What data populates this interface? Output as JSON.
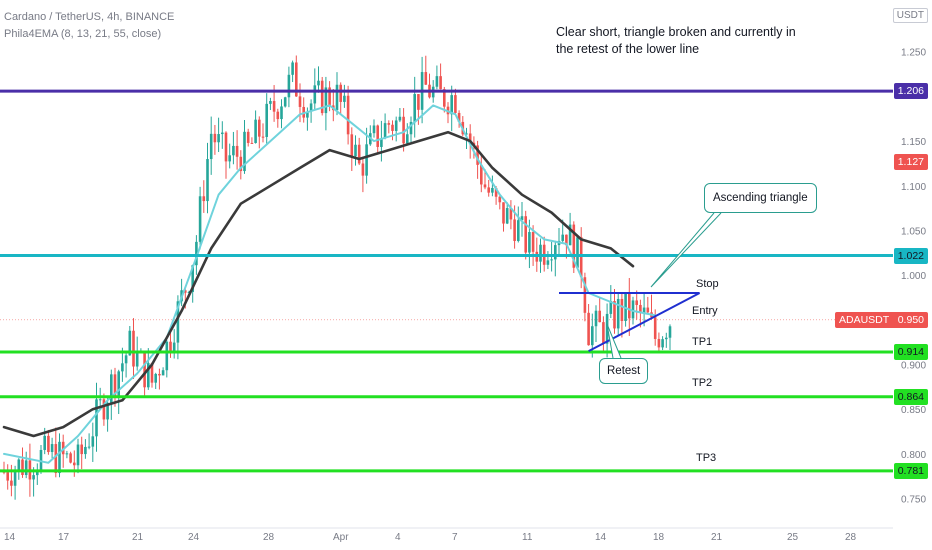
{
  "header": {
    "symbol_line": "Cardano / TetherUS, 4h, BINANCE",
    "indicator_line": "Phila4EMA (8, 13, 21, 55, close)"
  },
  "note": {
    "line1": "Clear short, triangle broken and currently in",
    "line2": "the retest of the lower line"
  },
  "labels": {
    "stop": "Stop",
    "entry": "Entry",
    "tp1": "TP1",
    "tp2": "TP2",
    "tp3": "TP3",
    "ascending_triangle": "Ascending triangle",
    "retest": "Retest"
  },
  "axis": {
    "currency_top": "USDT",
    "currency_bottom": ""
  },
  "colors": {
    "purple_level": "#4a2fa8",
    "cyan_level": "#18b6c4",
    "green_level": "#22e022",
    "triangle": "#1f2fd0",
    "ema_fast": "#6fd3dc",
    "ema_slow": "#3a3a3a",
    "candle_up": "#26a69a",
    "candle_down": "#ef5350",
    "callout": "#2a9d8f"
  },
  "chart_data": {
    "type": "candlestick",
    "ylim": [
      0.735,
      1.29
    ],
    "y_ticks": [
      1.25,
      1.15,
      1.1,
      1.05,
      1.0,
      0.9,
      0.85,
      0.8,
      0.75
    ],
    "x_ticks": [
      "14",
      "17",
      "21",
      "24",
      "28",
      "Apr",
      "4",
      "7",
      "11",
      "14",
      "18",
      "21",
      "25",
      "28"
    ],
    "horizontal_levels": [
      {
        "value": 1.206,
        "color": "#4a2fa8"
      },
      {
        "value": 1.022,
        "color": "#18b6c4"
      },
      {
        "value": 0.914,
        "color": "#22e022"
      },
      {
        "value": 0.864,
        "color": "#22e022"
      },
      {
        "value": 0.781,
        "color": "#22e022"
      }
    ],
    "price_badges": [
      {
        "value": 1.206,
        "text": "1.206",
        "bg": "#4a2fa8",
        "fg": "#ffffff"
      },
      {
        "value": 1.127,
        "text": "1.127",
        "bg": "#ef5350",
        "fg": "#ffffff"
      },
      {
        "value": 1.022,
        "text": "1.022",
        "bg": "#18b6c4",
        "fg": "#131722"
      },
      {
        "value": 0.95,
        "text": "ADAUSDT   0.950",
        "bg": "#ef5350",
        "fg": "#ffffff"
      },
      {
        "value": 0.914,
        "text": "0.914",
        "bg": "#22e022",
        "fg": "#131722"
      },
      {
        "value": 0.864,
        "text": "0.864",
        "bg": "#22e022",
        "fg": "#131722"
      },
      {
        "value": 0.781,
        "text": "0.781",
        "bg": "#22e022",
        "fg": "#131722"
      }
    ],
    "current_price": 0.95,
    "close_path": [
      [
        0,
        0.78
      ],
      [
        6,
        0.8
      ],
      [
        10,
        0.79
      ],
      [
        14,
        0.87
      ],
      [
        17,
        0.92
      ],
      [
        20,
        0.88
      ],
      [
        22,
        0.92
      ],
      [
        25,
        1.0
      ],
      [
        26,
        1.04
      ],
      [
        28,
        1.16
      ],
      [
        30,
        1.13
      ],
      [
        33,
        1.14
      ],
      [
        36,
        1.18
      ],
      [
        39,
        1.22
      ],
      [
        41,
        1.19
      ],
      [
        43,
        1.2
      ],
      [
        45,
        1.2
      ],
      [
        46,
        1.18
      ],
      [
        48,
        1.12
      ],
      [
        50,
        1.15
      ],
      [
        52,
        1.17
      ],
      [
        54,
        1.17
      ],
      [
        55,
        1.19
      ],
      [
        57,
        1.21
      ],
      [
        59,
        1.2
      ],
      [
        61,
        1.2
      ],
      [
        63,
        1.15
      ],
      [
        65,
        1.1
      ],
      [
        67,
        1.07
      ],
      [
        69,
        1.06
      ],
      [
        71,
        1.03
      ],
      [
        73,
        1.03
      ],
      [
        75,
        1.05
      ],
      [
        76,
        1.05
      ],
      [
        78,
        1.01
      ],
      [
        79,
        0.94
      ],
      [
        81,
        0.94
      ],
      [
        83,
        0.96
      ],
      [
        85,
        0.96
      ],
      [
        87,
        0.95
      ],
      [
        88,
        0.93
      ],
      [
        90,
        0.95
      ]
    ],
    "ema_fast": [
      [
        0,
        0.8
      ],
      [
        6,
        0.79
      ],
      [
        10,
        0.82
      ],
      [
        14,
        0.86
      ],
      [
        18,
        0.89
      ],
      [
        22,
        0.93
      ],
      [
        26,
        1.02
      ],
      [
        29,
        1.09
      ],
      [
        32,
        1.12
      ],
      [
        36,
        1.15
      ],
      [
        40,
        1.18
      ],
      [
        44,
        1.19
      ],
      [
        47,
        1.17
      ],
      [
        50,
        1.15
      ],
      [
        54,
        1.16
      ],
      [
        58,
        1.19
      ],
      [
        61,
        1.18
      ],
      [
        64,
        1.13
      ],
      [
        67,
        1.09
      ],
      [
        70,
        1.06
      ],
      [
        73,
        1.04
      ],
      [
        76,
        1.035
      ],
      [
        79,
        0.98
      ],
      [
        82,
        0.97
      ],
      [
        85,
        0.96
      ],
      [
        88,
        0.955
      ]
    ],
    "ema_slow": [
      [
        0,
        0.83
      ],
      [
        4,
        0.82
      ],
      [
        8,
        0.83
      ],
      [
        12,
        0.85
      ],
      [
        16,
        0.86
      ],
      [
        20,
        0.9
      ],
      [
        24,
        0.96
      ],
      [
        28,
        1.03
      ],
      [
        32,
        1.08
      ],
      [
        36,
        1.1
      ],
      [
        40,
        1.12
      ],
      [
        44,
        1.14
      ],
      [
        48,
        1.13
      ],
      [
        52,
        1.14
      ],
      [
        56,
        1.15
      ],
      [
        60,
        1.16
      ],
      [
        63,
        1.15
      ],
      [
        66,
        1.12
      ],
      [
        70,
        1.09
      ],
      [
        74,
        1.07
      ],
      [
        78,
        1.04
      ],
      [
        82,
        1.03
      ],
      [
        85,
        1.01
      ]
    ],
    "triangle": {
      "top": [
        [
          75,
          0.98
        ],
        [
          94,
          0.98
        ]
      ],
      "bottom": [
        [
          79,
          0.915
        ],
        [
          94,
          0.98
        ]
      ]
    }
  }
}
